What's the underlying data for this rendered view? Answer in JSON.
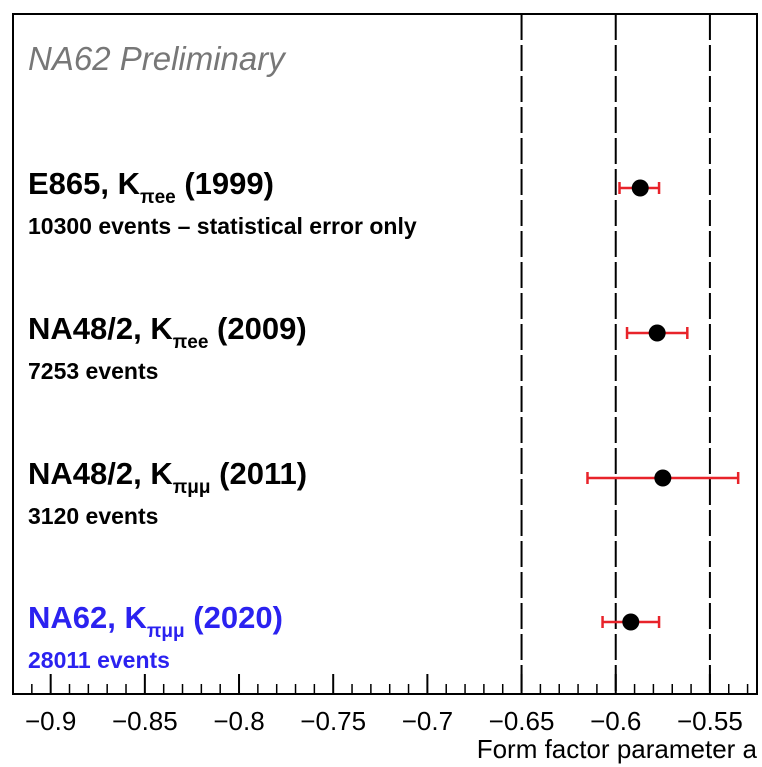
{
  "chart_data": {
    "type": "scatter",
    "annotation": "NA62 Preliminary",
    "xlabel": "Form factor parameter a",
    "xlim": [
      -0.92,
      -0.525
    ],
    "x_ticks": [
      -0.9,
      -0.85,
      -0.8,
      -0.75,
      -0.7,
      -0.65,
      -0.6,
      -0.55
    ],
    "tick_labels": [
      "−0.9",
      "−0.85",
      "−0.8",
      "−0.75",
      "−0.7",
      "−0.65",
      "−0.6",
      "−0.55"
    ],
    "reference_lines": [
      -0.65,
      -0.6,
      -0.55
    ],
    "measurements": [
      {
        "exp": "E865, K",
        "sub": "πee",
        "year": " (1999)",
        "events": "10300 events  – statistical error only",
        "value": -0.587,
        "err_low": -0.598,
        "err_high": -0.577,
        "color": "#000000"
      },
      {
        "exp": "NA48/2, K",
        "sub": "πee",
        "year": " (2009)",
        "events": "7253 events",
        "value": -0.578,
        "err_low": -0.594,
        "err_high": -0.562,
        "color": "#000000"
      },
      {
        "exp": "NA48/2, K",
        "sub": "πμμ",
        "year": " (2011)",
        "events": "3120 events",
        "value": -0.575,
        "err_low": -0.615,
        "err_high": -0.535,
        "color": "#000000"
      },
      {
        "exp": "NA62, K",
        "sub": "πμμ",
        "year": " (2020)",
        "events": "28011 events",
        "value": -0.592,
        "err_low": -0.607,
        "err_high": -0.577,
        "color": "#2b22f0"
      }
    ],
    "marker_color": "#000000",
    "error_color": "#e8232a",
    "grid": false
  }
}
